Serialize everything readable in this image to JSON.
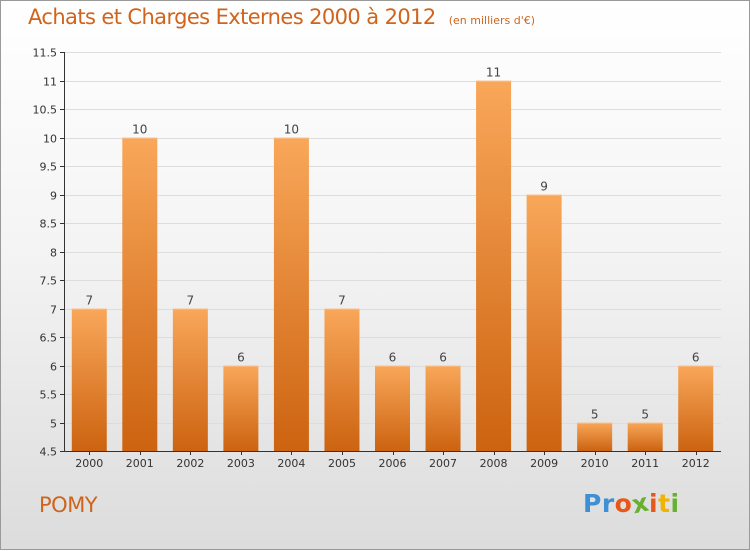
{
  "header": {
    "title": "Achats et Charges Externes 2000 à 2012",
    "subtitle": "(en milliers d'€)"
  },
  "footer": {
    "commune": "POMY",
    "logo_text": "Proxiti"
  },
  "colors": {
    "bar_top": "#f9a75a",
    "bar_bottom": "#cc6310",
    "title": "#d0641c",
    "grid": "#dddddd",
    "axis": "#333333",
    "logo": [
      "#3d8fd6",
      "#3d8fd6",
      "#e8571a",
      "#68b02f",
      "#e8571a",
      "#f0b400",
      "#68b02f"
    ]
  },
  "chart_data": {
    "type": "bar",
    "title": "Achats et Charges Externes 2000 à 2012",
    "subtitle": "(en milliers d'€)",
    "xlabel": "",
    "ylabel": "",
    "categories": [
      "2000",
      "2001",
      "2002",
      "2003",
      "2004",
      "2005",
      "2006",
      "2007",
      "2008",
      "2009",
      "2010",
      "2011",
      "2012"
    ],
    "values": [
      7,
      10,
      7,
      6,
      10,
      7,
      6,
      6,
      11,
      9,
      5,
      5,
      6
    ],
    "data_labels": [
      "7",
      "10",
      "7",
      "6",
      "10",
      "7",
      "6",
      "6",
      "11",
      "9",
      "5",
      "5",
      "6"
    ],
    "ylim": [
      4.5,
      11.5
    ],
    "yticks": [
      4.5,
      5,
      5.5,
      6,
      6.5,
      7,
      7.5,
      8,
      8.5,
      9,
      9.5,
      10,
      10.5,
      11,
      11.5
    ],
    "ytick_labels": [
      "4.5",
      "5",
      "5.5",
      "6",
      "6.5",
      "7",
      "7.5",
      "8",
      "8.5",
      "9",
      "9.5",
      "10",
      "10.5",
      "11",
      "11.5"
    ],
    "grid": true,
    "legend": "none"
  }
}
